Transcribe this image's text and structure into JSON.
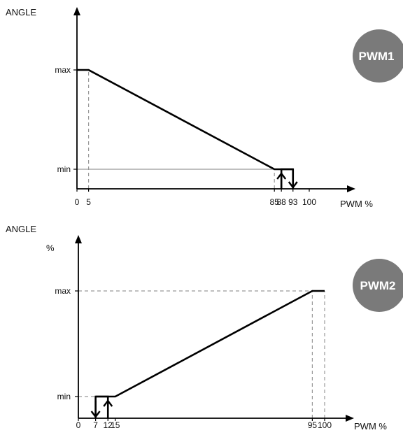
{
  "colors": {
    "line": "#000000",
    "guide": "#999999",
    "badge": "#7a7a7a",
    "badge_text": "#ffffff"
  },
  "chart_data": [
    {
      "type": "line",
      "badge": "PWM1",
      "ylabel": "ANGLE",
      "ylabel_unit": "",
      "xlabel": "PWM %",
      "xlim": [
        0,
        115
      ],
      "y_levels": [
        "min",
        "max"
      ],
      "x_ticks": [
        {
          "value": 0,
          "label": "0"
        },
        {
          "value": 5,
          "label": "5"
        },
        {
          "value": 85,
          "label": "85"
        },
        {
          "value": 88,
          "label": "88"
        },
        {
          "value": 93,
          "label": "93"
        },
        {
          "value": 100,
          "label": "100"
        }
      ],
      "y_ticks": [
        {
          "level": "max",
          "label": "max"
        },
        {
          "level": "min",
          "label": "min"
        }
      ],
      "curve": [
        {
          "x": 0,
          "y": "max"
        },
        {
          "x": 5,
          "y": "max"
        },
        {
          "x": 85,
          "y": "min"
        },
        {
          "x": 93,
          "y": "min"
        }
      ],
      "hysteresis": {
        "x_on": 88,
        "x_off": 93,
        "arrow_up_at": 88,
        "arrow_down_at": 93,
        "level": "min"
      },
      "guides": [
        {
          "orientation": "vertical",
          "x": 5,
          "from": "axis",
          "to": "max",
          "dashed": true
        },
        {
          "orientation": "vertical",
          "x": 85,
          "from": "axis",
          "to": "min",
          "dashed": true
        },
        {
          "orientation": "horizontal",
          "y": "min",
          "from": 0,
          "to": 85,
          "dashed": false
        }
      ]
    },
    {
      "type": "line",
      "badge": "PWM2",
      "ylabel": "ANGLE",
      "ylabel_unit": "%",
      "xlabel": "PWM %",
      "xlim": [
        0,
        115
      ],
      "y_levels": [
        "min",
        "max"
      ],
      "x_ticks": [
        {
          "value": 0,
          "label": "0"
        },
        {
          "value": 7,
          "label": "7"
        },
        {
          "value": 12,
          "label": "12"
        },
        {
          "value": 15,
          "label": "15"
        },
        {
          "value": 95,
          "label": "95"
        },
        {
          "value": 100,
          "label": "100"
        }
      ],
      "y_ticks": [
        {
          "level": "max",
          "label": "max"
        },
        {
          "level": "min",
          "label": "min"
        }
      ],
      "curve": [
        {
          "x": 7,
          "y": "min"
        },
        {
          "x": 15,
          "y": "min"
        },
        {
          "x": 95,
          "y": "max"
        },
        {
          "x": 100,
          "y": "max"
        }
      ],
      "hysteresis": {
        "x_on": 7,
        "x_off": 12,
        "arrow_down_at": 7,
        "arrow_up_at": 12,
        "level": "min"
      },
      "guides": [
        {
          "orientation": "vertical",
          "x": 95,
          "from": "axis",
          "to": "max",
          "dashed": true
        },
        {
          "orientation": "vertical",
          "x": 100,
          "from": "axis",
          "to": "max",
          "dashed": true
        },
        {
          "orientation": "horizontal",
          "y": "max",
          "from": 0,
          "to": 95,
          "dashed": true
        },
        {
          "orientation": "horizontal",
          "y": "min",
          "from": 0,
          "to": 7,
          "dashed": true
        }
      ]
    }
  ]
}
